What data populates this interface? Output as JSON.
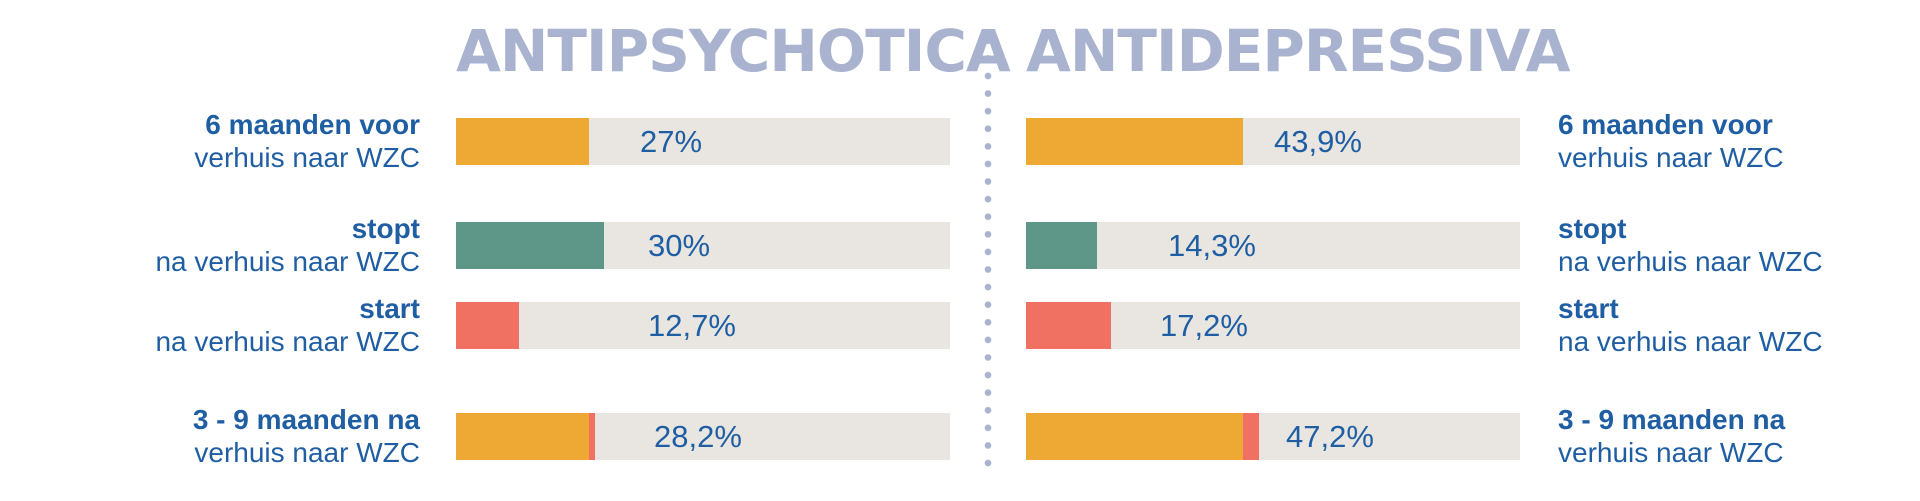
{
  "colors": {
    "title": "#a9b3cf",
    "text": "#1f5ea3",
    "track": "#e9e6e1",
    "orange": "#eea935",
    "green": "#5e9688",
    "red": "#f07162"
  },
  "chart_data": [
    {
      "type": "bar",
      "title": "ANTIPSYCHOTICA",
      "xlim": [
        0,
        100
      ],
      "categories": [
        "6 maanden voor verhuis naar WZC",
        "stopt na verhuis naar WZC",
        "start na verhuis naar WZC",
        "3 - 9 maanden na verhuis naar WZC"
      ],
      "bars": [
        {
          "label_bold": "6 maanden voor",
          "label_rest": "verhuis naar WZC",
          "value_label": "27%",
          "segments": [
            {
              "value": 27,
              "color": "orange"
            }
          ]
        },
        {
          "label_bold": "stopt",
          "label_rest": "na verhuis naar WZC",
          "value_label": "30%",
          "segments": [
            {
              "value": 30,
              "color": "green"
            }
          ]
        },
        {
          "label_bold": "start",
          "label_rest": "na verhuis naar WZC",
          "value_label": "12,7%",
          "segments": [
            {
              "value": 12.7,
              "color": "red"
            }
          ]
        },
        {
          "label_bold": "3 - 9  maanden na",
          "label_rest": "verhuis naar WZC",
          "value_label": "28,2%",
          "segments": [
            {
              "value": 27,
              "color": "orange"
            },
            {
              "value": 1.2,
              "color": "red"
            }
          ]
        }
      ]
    },
    {
      "type": "bar",
      "title": "ANTIDEPRESSIVA",
      "xlim": [
        0,
        100
      ],
      "categories": [
        "6 maanden voor verhuis naar WZC",
        "stopt na verhuis naar WZC",
        "start na verhuis naar WZC",
        "3 - 9 maanden na verhuis naar WZC"
      ],
      "bars": [
        {
          "label_bold": "6 maanden voor",
          "label_rest": "verhuis naar WZC",
          "value_label": "43,9%",
          "segments": [
            {
              "value": 43.9,
              "color": "orange"
            }
          ]
        },
        {
          "label_bold": "stopt",
          "label_rest": "na verhuis naar WZC",
          "value_label": "14,3%",
          "segments": [
            {
              "value": 14.3,
              "color": "green"
            }
          ]
        },
        {
          "label_bold": "start",
          "label_rest": "na verhuis naar WZC",
          "value_label": "17,2%",
          "segments": [
            {
              "value": 17.2,
              "color": "red"
            }
          ]
        },
        {
          "label_bold": "3 - 9  maanden na",
          "label_rest": "verhuis naar WZC",
          "value_label": "47,2%",
          "segments": [
            {
              "value": 43.9,
              "color": "orange"
            },
            {
              "value": 3.3,
              "color": "red"
            }
          ]
        }
      ]
    }
  ]
}
